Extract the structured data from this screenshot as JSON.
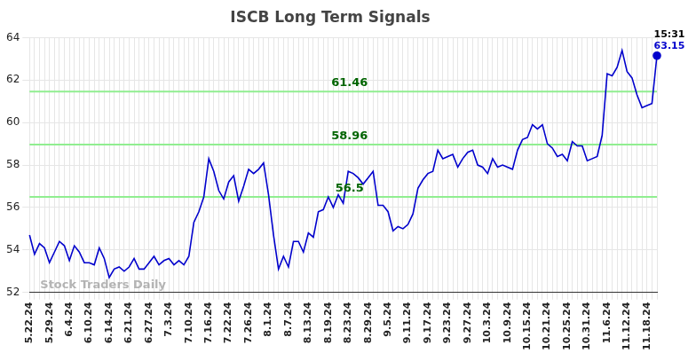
{
  "chart_data": {
    "type": "line",
    "title": "ISCB Long Term Signals",
    "categories": [
      "5.22.24",
      null,
      null,
      null,
      "5.29.24",
      null,
      null,
      null,
      "6.4.24",
      null,
      null,
      null,
      "6.10.24",
      null,
      null,
      null,
      "6.14.24",
      null,
      null,
      null,
      "6.21.24",
      null,
      null,
      null,
      "6.27.24",
      null,
      null,
      null,
      "7.3.24",
      null,
      null,
      null,
      "7.10.24",
      null,
      null,
      null,
      "7.16.24",
      null,
      null,
      null,
      "7.22.24",
      null,
      null,
      null,
      "7.26.24",
      null,
      null,
      null,
      "8.1.24",
      null,
      null,
      null,
      "8.7.24",
      null,
      null,
      null,
      "8.13.24",
      null,
      null,
      null,
      "8.19.24",
      null,
      null,
      null,
      "8.23.24",
      null,
      null,
      null,
      "8.29.24",
      null,
      null,
      null,
      "9.5.24",
      null,
      null,
      null,
      "9.11.24",
      null,
      null,
      null,
      "9.17.24",
      null,
      null,
      null,
      "9.23.24",
      null,
      null,
      null,
      "9.27.24",
      null,
      null,
      null,
      "10.3.24",
      null,
      null,
      null,
      "10.9.24",
      null,
      null,
      null,
      "10.15.24",
      null,
      null,
      null,
      "10.21.24",
      null,
      null,
      null,
      "10.25.24",
      null,
      null,
      null,
      "10.31.24",
      null,
      null,
      null,
      "11.6.24",
      null,
      null,
      null,
      "11.12.24",
      null,
      null,
      null,
      "11.18.24",
      null,
      null
    ],
    "values": [
      54.7,
      53.8,
      54.3,
      54.1,
      53.4,
      53.9,
      54.4,
      54.2,
      53.5,
      54.2,
      53.9,
      53.4,
      53.4,
      53.3,
      54.1,
      53.6,
      52.7,
      53.1,
      53.2,
      53.0,
      53.2,
      53.6,
      53.1,
      53.1,
      53.4,
      53.7,
      53.3,
      53.5,
      53.6,
      53.3,
      53.5,
      53.3,
      53.7,
      55.3,
      55.8,
      56.5,
      58.3,
      57.7,
      56.8,
      56.4,
      57.2,
      57.5,
      56.3,
      57.0,
      57.8,
      57.6,
      57.8,
      58.1,
      56.6,
      54.7,
      53.1,
      53.7,
      53.2,
      54.4,
      54.4,
      53.9,
      54.8,
      54.6,
      55.8,
      55.9,
      56.5,
      56.0,
      56.6,
      56.2,
      57.7,
      57.6,
      57.4,
      57.1,
      57.4,
      57.7,
      56.1,
      56.1,
      55.8,
      54.9,
      55.1,
      55.0,
      55.2,
      55.7,
      56.9,
      57.3,
      57.6,
      57.7,
      58.7,
      58.3,
      58.4,
      58.5,
      57.9,
      58.3,
      58.6,
      58.7,
      58.0,
      57.9,
      57.6,
      58.3,
      57.9,
      58.0,
      57.9,
      57.8,
      58.7,
      59.2,
      59.3,
      59.9,
      59.7,
      59.9,
      59.0,
      58.8,
      58.4,
      58.5,
      58.2,
      59.1,
      58.9,
      58.9,
      58.2,
      58.3,
      58.4,
      59.4,
      62.3,
      62.2,
      62.6,
      63.4,
      62.4,
      62.1,
      61.3,
      60.7,
      60.8,
      60.9,
      63.15
    ],
    "color": "#0000cc",
    "ylim": [
      52,
      64
    ],
    "yticks": [
      52,
      54,
      56,
      58,
      60,
      62,
      64
    ],
    "grid": true,
    "reference_lines": [
      61.46,
      58.96,
      56.5
    ],
    "last_point_labels": [
      "15:31",
      "63.15"
    ],
    "watermark": "Stock Traders Daily"
  }
}
